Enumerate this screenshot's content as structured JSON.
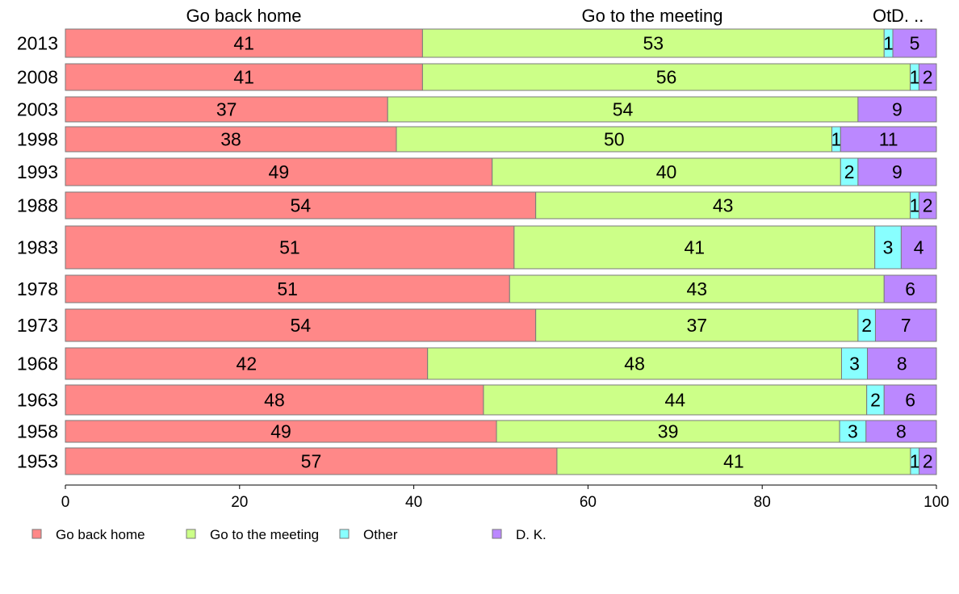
{
  "chart_data": {
    "type": "bar",
    "orientation": "horizontal",
    "stacked": true,
    "column_headers": [
      "Go back home",
      "Go to the meeting",
      "Ot.",
      "D. .."
    ],
    "categories": [
      "2013",
      "2008",
      "2003",
      "1998",
      "1993",
      "1988",
      "1983",
      "1978",
      "1973",
      "1968",
      "1963",
      "1958",
      "1953"
    ],
    "series": [
      {
        "name": "Go back home",
        "color": "#FF8888",
        "values": [
          41,
          41,
          37,
          38,
          49,
          54,
          51,
          51,
          54,
          42,
          48,
          49,
          57
        ],
        "labels": [
          "41",
          "41",
          "37",
          "38",
          "49",
          "54",
          "51",
          "51",
          "54",
          "42",
          "48",
          "49",
          "57"
        ]
      },
      {
        "name": "Go to the meeting",
        "color": "#CCFF88",
        "values": [
          53,
          56,
          54,
          50,
          40,
          43,
          41,
          43,
          37,
          48,
          44,
          39,
          41
        ],
        "labels": [
          "53",
          "56",
          "54",
          "50",
          "40",
          "43",
          "41",
          "43",
          "37",
          "48",
          "44",
          "39",
          "41"
        ]
      },
      {
        "name": "Other",
        "color": "#88FFFF",
        "values": [
          1,
          1,
          0,
          1,
          2,
          1,
          3,
          0,
          2,
          3,
          2,
          3,
          1
        ],
        "labels": [
          "1",
          "1",
          "",
          "1",
          "2",
          "1",
          "3",
          "",
          "2",
          "3",
          "2",
          "3",
          "1"
        ]
      },
      {
        "name": "D. K.",
        "color": "#BB88FF",
        "values": [
          5,
          2,
          9,
          11,
          9,
          2,
          4,
          6,
          7,
          8,
          6,
          8,
          2
        ],
        "labels": [
          "5",
          "2",
          "9",
          "11",
          "9",
          "2",
          "4",
          "6",
          "7",
          "8",
          "6",
          "8",
          "2"
        ]
      }
    ],
    "xlim": [
      0,
      100
    ],
    "x_ticks": [
      "0",
      "20",
      "40",
      "60",
      "80",
      "100"
    ],
    "legend": {
      "placement": "bottom-left",
      "entries": [
        "Go back home",
        "Go to the meeting",
        "Other",
        "D. K."
      ]
    },
    "grid": false
  }
}
